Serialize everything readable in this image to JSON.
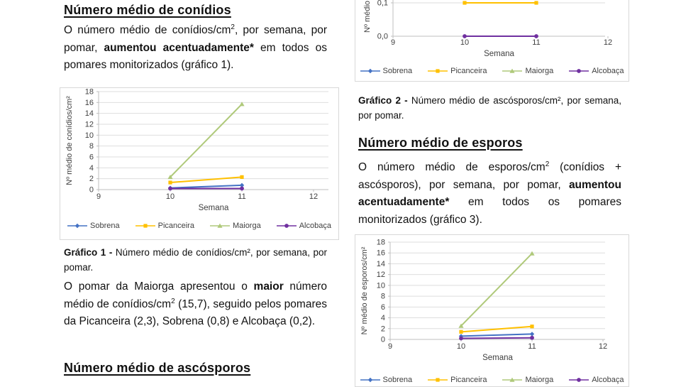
{
  "document": {
    "left_column": {
      "heading_conidios": "Número médio de conídios",
      "para_conidios": {
        "pre": "O número médio de conídios/cm",
        "sup": "2",
        "mid": ", por semana, por pomar, ",
        "bold": "aumentou acentuadamente*",
        "post": " em todos os pomares monitorizados (gráfico 1)."
      },
      "caption_grafico1": {
        "label": "Gráfico 1 - ",
        "text": "Número médio de conídios/cm², por semana, por pomar."
      },
      "para_maiorga": {
        "pre": "O pomar da Maiorga apresentou o ",
        "bold": "maior",
        "mid": " número médio de conídios/cm",
        "sup": "2",
        "post": " (15,7), seguido pelos pomares da Picanceira (2,3), Sobrena (0,8) e Alcobaça (0,2)."
      },
      "heading_ascosporos": "Número médio de ascósporos"
    },
    "right_column": {
      "caption_grafico2": {
        "label": "Gráfico 2 - ",
        "text": "Número médio de ascósporos/cm², por semana, por pomar."
      },
      "heading_esporos": "Número médio de esporos",
      "para_esporos": {
        "pre": "O número médio de esporos/cm",
        "sup": "2",
        "mid": " (conídios + ascósporos), por semana, por pomar, ",
        "bold": "aumentou acentuadamente*",
        "post": " em todos os pomares monitorizados (gráfico 3)."
      }
    }
  },
  "colors": {
    "sobrena": "#4472C4",
    "picanceira": "#FFC000",
    "maiorga": "#AFC97A",
    "alcobaca": "#7030A0",
    "gridline": "#DEDEDE",
    "axis": "#BFBFBF",
    "chart_border": "#D8D8D8",
    "axis_text": "#404040"
  },
  "chart_data": [
    {
      "id": "chart1",
      "type": "line",
      "title": "Gráfico 1",
      "xlabel": "Semana",
      "ylabel": "Nº médio de conídios/cm²",
      "x": [
        10,
        11
      ],
      "xticks": [
        9,
        10,
        11,
        12
      ],
      "xlim": [
        9,
        12.2
      ],
      "ylim": [
        0,
        18
      ],
      "ytick_step": 2,
      "grid": true,
      "legend_position": "bottom",
      "series": [
        {
          "name": "Sobrena",
          "color": "#4472C4",
          "marker": "diamond",
          "values": [
            0.3,
            0.8
          ]
        },
        {
          "name": "Picanceira",
          "color": "#FFC000",
          "marker": "square",
          "values": [
            1.3,
            2.3
          ]
        },
        {
          "name": "Maiorga",
          "color": "#AFC97A",
          "marker": "triangle",
          "values": [
            2.3,
            15.7
          ]
        },
        {
          "name": "Alcobaça",
          "color": "#7030A0",
          "marker": "circle",
          "values": [
            0.2,
            0.2
          ]
        }
      ]
    },
    {
      "id": "chart2",
      "type": "line",
      "title": "Gráfico 2",
      "note": "top of chart cropped at page edge; only ticks 0,0 and 0,1 visible",
      "xlabel": "Semana",
      "ylabel": "Nº médio de ascósporos/cm²",
      "x": [
        10,
        11
      ],
      "xticks": [
        9,
        10,
        11,
        12
      ],
      "xlim": [
        9,
        12.2
      ],
      "yticks_visible": [
        "0,0",
        "0,1"
      ],
      "grid": true,
      "legend_position": "bottom",
      "series": [
        {
          "name": "Sobrena",
          "color": "#4472C4",
          "marker": "diamond",
          "values": [
            null,
            null
          ]
        },
        {
          "name": "Picanceira",
          "color": "#FFC000",
          "marker": "square",
          "values": [
            0.1,
            0.1
          ]
        },
        {
          "name": "Maiorga",
          "color": "#AFC97A",
          "marker": "triangle",
          "values": [
            null,
            null
          ]
        },
        {
          "name": "Alcobaça",
          "color": "#7030A0",
          "marker": "circle",
          "values": [
            0.0,
            0.0
          ]
        }
      ]
    },
    {
      "id": "chart3",
      "type": "line",
      "title": "Gráfico 3",
      "note": "bottom legend cropped at page edge",
      "xlabel": "Semana",
      "ylabel": "Nº médio de esporos/cm²",
      "x": [
        10,
        11
      ],
      "xticks": [
        9,
        10,
        11,
        12
      ],
      "xlim": [
        9,
        12.2
      ],
      "ylim": [
        0,
        18
      ],
      "ytick_step": 2,
      "grid": true,
      "legend_position": "bottom",
      "series": [
        {
          "name": "Sobrena",
          "color": "#4472C4",
          "marker": "diamond",
          "values": [
            0.6,
            1.0
          ]
        },
        {
          "name": "Picanceira",
          "color": "#FFC000",
          "marker": "square",
          "values": [
            1.4,
            2.4
          ]
        },
        {
          "name": "Maiorga",
          "color": "#AFC97A",
          "marker": "triangle",
          "values": [
            2.5,
            15.9
          ]
        },
        {
          "name": "Alcobaça",
          "color": "#7030A0",
          "marker": "circle",
          "values": [
            0.2,
            0.3
          ]
        }
      ]
    }
  ]
}
